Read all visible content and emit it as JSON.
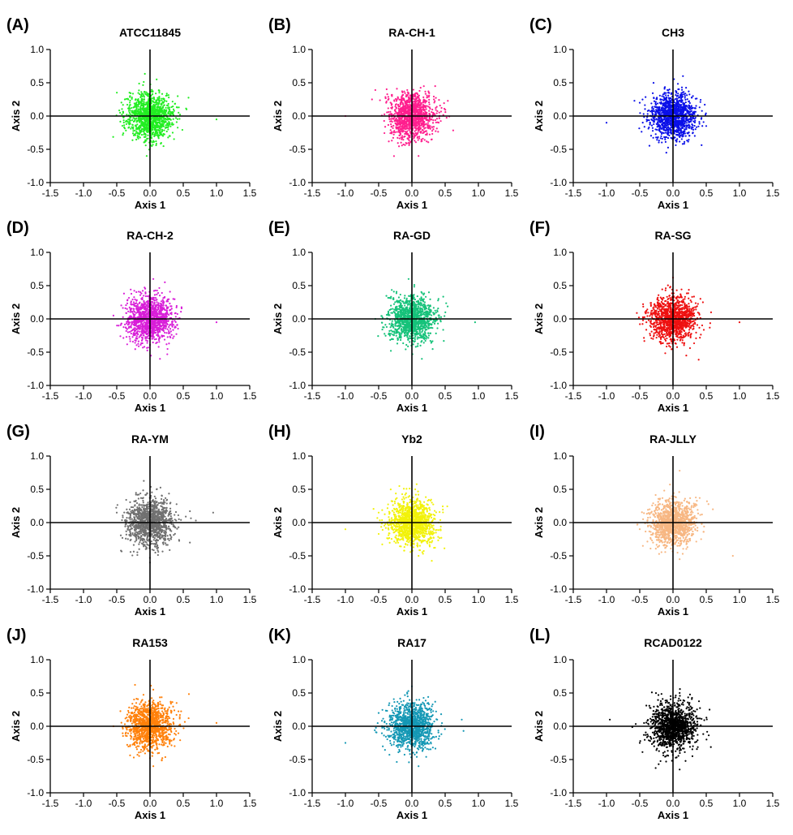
{
  "figure": {
    "axis_color": "#000000",
    "panels": [
      {
        "letter": "(A)",
        "title": "ATCC11845",
        "color": "#22ee22"
      },
      {
        "letter": "(B)",
        "title": "RA-CH-1",
        "color": "#ff1f8e"
      },
      {
        "letter": "(C)",
        "title": "CH3",
        "color": "#0a10e8"
      },
      {
        "letter": "(D)",
        "title": "RA-CH-2",
        "color": "#d81ed8"
      },
      {
        "letter": "(E)",
        "title": "RA-GD",
        "color": "#16c27a"
      },
      {
        "letter": "(F)",
        "title": "RA-SG",
        "color": "#ee1111"
      },
      {
        "letter": "(G)",
        "title": "RA-YM",
        "color": "#707070"
      },
      {
        "letter": "(H)",
        "title": "Yb2",
        "color": "#f2f20a"
      },
      {
        "letter": "(I)",
        "title": "RA-JLLY",
        "color": "#f7b783"
      },
      {
        "letter": "(J)",
        "title": "RA153",
        "color": "#ff800a"
      },
      {
        "letter": "(K)",
        "title": "RA17",
        "color": "#1598b5"
      },
      {
        "letter": "(L)",
        "title": "RCAD0122",
        "color": "#000000"
      }
    ]
  },
  "chart_data": {
    "type": "scatter",
    "xlabel": "Axis 1",
    "ylabel": "Axis 2",
    "xlim": [
      -1.5,
      1.5
    ],
    "ylim": [
      -1.0,
      1.0
    ],
    "xticks": [
      -1.5,
      -1.0,
      -0.5,
      0.0,
      0.5,
      1.0,
      1.5
    ],
    "yticks": [
      -1.0,
      -0.5,
      0.0,
      0.5,
      1.0
    ],
    "xtick_labels": [
      "-1.5",
      "-1.0",
      "-0.5",
      "0.0",
      "0.5",
      "1.0",
      "1.5"
    ],
    "ytick_labels": [
      "-1.0",
      "-0.5",
      "0.0",
      "0.5",
      "1.0"
    ],
    "grid": false,
    "series": [
      {
        "name": "ATCC11845",
        "points": [
          [
            0.0,
            0.0
          ],
          [
            -0.45,
            0.05
          ],
          [
            0.55,
            0.1
          ],
          [
            1.0,
            -0.05
          ],
          [
            0.1,
            0.55
          ],
          [
            -0.05,
            -0.6
          ],
          [
            0.3,
            -0.3
          ],
          [
            -0.3,
            0.3
          ],
          [
            0.2,
            0.2
          ],
          [
            -0.2,
            -0.2
          ]
        ]
      },
      {
        "name": "RA-CH-1",
        "points": [
          [
            0.0,
            0.0
          ],
          [
            -1.0,
            0.0
          ],
          [
            0.35,
            0.45
          ],
          [
            0.1,
            -0.6
          ],
          [
            -0.6,
            0.25
          ],
          [
            0.3,
            -0.35
          ],
          [
            -0.3,
            0.3
          ],
          [
            0.2,
            0.2
          ],
          [
            -0.2,
            -0.2
          ]
        ]
      },
      {
        "name": "CH3",
        "points": [
          [
            0.0,
            0.0
          ],
          [
            -1.0,
            -0.1
          ],
          [
            0.5,
            -0.15
          ],
          [
            0.15,
            0.6
          ],
          [
            -0.1,
            -0.55
          ],
          [
            -0.5,
            0.2
          ],
          [
            0.3,
            0.3
          ],
          [
            -0.2,
            -0.2
          ]
        ]
      },
      {
        "name": "RA-CH-2",
        "points": [
          [
            0.0,
            0.0
          ],
          [
            -0.55,
            0.05
          ],
          [
            1.0,
            -0.05
          ],
          [
            0.05,
            0.6
          ],
          [
            0.15,
            -0.6
          ],
          [
            0.35,
            0.3
          ],
          [
            -0.3,
            -0.3
          ],
          [
            0.2,
            0.2
          ],
          [
            -0.2,
            -0.2
          ]
        ]
      },
      {
        "name": "RA-GD",
        "points": [
          [
            0.0,
            0.0
          ],
          [
            -0.55,
            0.0
          ],
          [
            0.95,
            -0.05
          ],
          [
            -0.05,
            0.6
          ],
          [
            0.15,
            -0.6
          ],
          [
            0.4,
            0.3
          ],
          [
            -0.3,
            -0.3
          ],
          [
            0.2,
            0.2
          ],
          [
            -0.2,
            -0.2
          ]
        ]
      },
      {
        "name": "RA-SG",
        "points": [
          [
            0.0,
            0.0
          ],
          [
            -0.4,
            -0.05
          ],
          [
            1.0,
            -0.05
          ],
          [
            0.0,
            0.62
          ],
          [
            0.2,
            -0.55
          ],
          [
            0.45,
            0.25
          ],
          [
            -0.3,
            -0.3
          ],
          [
            0.2,
            0.2
          ],
          [
            -0.2,
            -0.2
          ]
        ]
      },
      {
        "name": "RA-YM",
        "points": [
          [
            0.0,
            0.0
          ],
          [
            -0.5,
            0.15
          ],
          [
            0.95,
            0.15
          ],
          [
            0.1,
            0.5
          ],
          [
            0.0,
            -0.6
          ],
          [
            0.6,
            -0.3
          ],
          [
            -0.3,
            -0.2
          ],
          [
            0.2,
            0.2
          ],
          [
            -0.2,
            -0.2
          ]
        ]
      },
      {
        "name": "Yb2",
        "points": [
          [
            0.0,
            0.0
          ],
          [
            -1.0,
            -0.1
          ],
          [
            0.4,
            0.0
          ],
          [
            0.05,
            0.5
          ],
          [
            0.1,
            -0.5
          ],
          [
            -0.5,
            0.15
          ],
          [
            0.3,
            0.3
          ],
          [
            -0.2,
            -0.2
          ]
        ]
      },
      {
        "name": "RA-JLLY",
        "points": [
          [
            0.0,
            0.0
          ],
          [
            -0.45,
            0.05
          ],
          [
            0.9,
            -0.5
          ],
          [
            0.1,
            0.78
          ],
          [
            0.1,
            -0.55
          ],
          [
            0.6,
            0.2
          ],
          [
            -0.3,
            -0.3
          ],
          [
            0.2,
            0.2
          ],
          [
            -0.2,
            -0.2
          ]
        ]
      },
      {
        "name": "RA153",
        "points": [
          [
            0.0,
            0.0
          ],
          [
            -0.55,
            0.0
          ],
          [
            1.0,
            0.05
          ],
          [
            0.05,
            0.55
          ],
          [
            0.05,
            -0.6
          ],
          [
            0.4,
            0.35
          ],
          [
            -0.3,
            -0.3
          ],
          [
            0.2,
            0.2
          ],
          [
            -0.2,
            -0.2
          ]
        ]
      },
      {
        "name": "RA17",
        "points": [
          [
            0.0,
            0.0
          ],
          [
            -1.0,
            -0.25
          ],
          [
            0.75,
            0.1
          ],
          [
            0.0,
            0.6
          ],
          [
            0.1,
            -0.6
          ],
          [
            -0.5,
            0.2
          ],
          [
            0.3,
            0.3
          ],
          [
            -0.2,
            -0.2
          ]
        ]
      },
      {
        "name": "RCAD0122",
        "points": [
          [
            0.0,
            0.0
          ],
          [
            -0.95,
            0.1
          ],
          [
            0.55,
            0.25
          ],
          [
            0.1,
            0.5
          ],
          [
            0.1,
            -0.65
          ],
          [
            -0.5,
            -0.25
          ],
          [
            0.3,
            -0.3
          ],
          [
            -0.2,
            0.2
          ]
        ]
      }
    ]
  }
}
